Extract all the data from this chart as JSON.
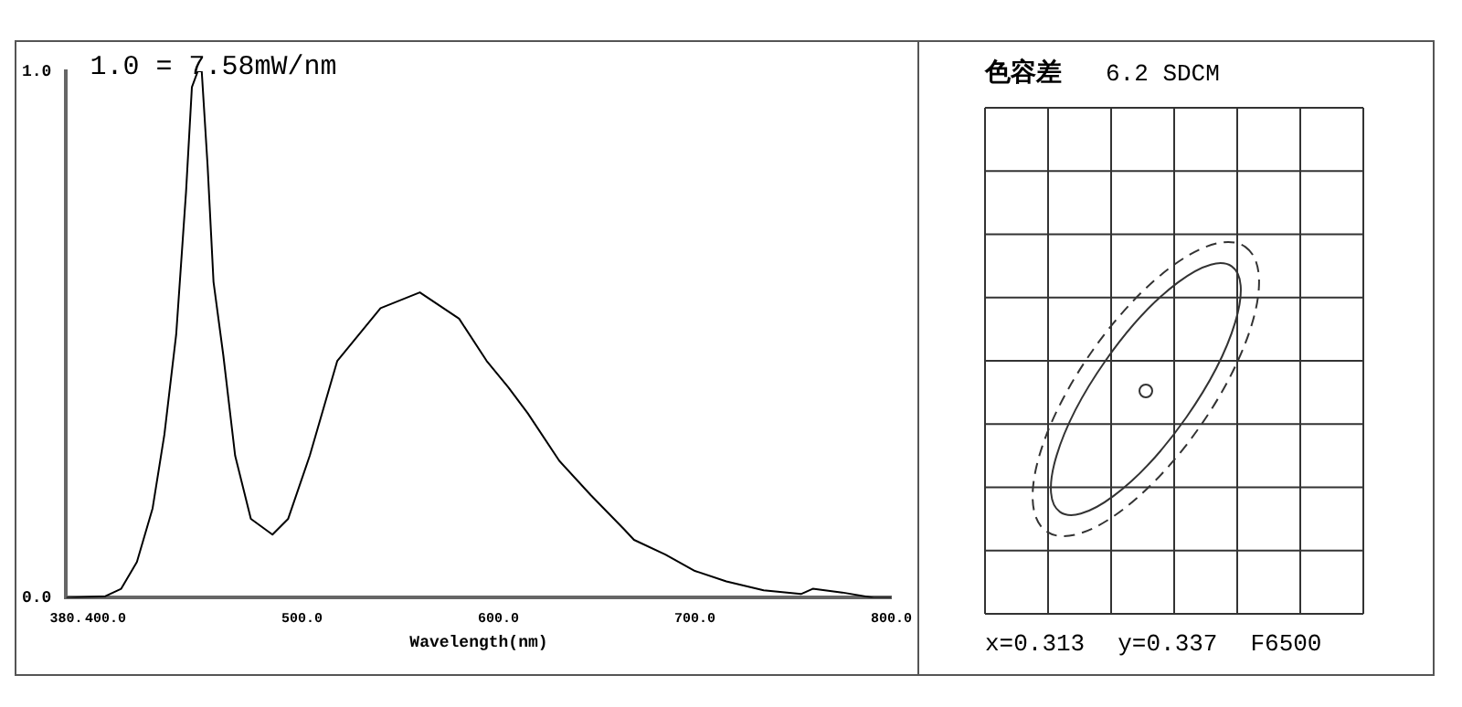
{
  "chart_data": [
    {
      "type": "line",
      "xlabel": "Wavelength(nm)",
      "annotations": [
        "1.0 = 7.58mW/nm"
      ],
      "xlim": [
        380,
        800
      ],
      "xticks": [
        {
          "value": 380,
          "label": "380."
        },
        {
          "value": 400,
          "label": "400.0"
        },
        {
          "value": 500,
          "label": "500.0"
        },
        {
          "value": 600,
          "label": "600.0"
        },
        {
          "value": 700,
          "label": "700.0"
        },
        {
          "value": 800,
          "label": "800.0"
        }
      ],
      "ylim": [
        0,
        1
      ],
      "yticks": [
        {
          "value": 0,
          "label": "0.0"
        },
        {
          "value": 1,
          "label": "1.0"
        }
      ],
      "grid": false,
      "legend": false,
      "marker": "none",
      "line_style": "solid",
      "series": [
        {
          "color": "#000000",
          "x": [
            380,
            400,
            408,
            416,
            424,
            430,
            436,
            441,
            444,
            447,
            449,
            452,
            455,
            460,
            466,
            474,
            485,
            493,
            504,
            518,
            540,
            560,
            580,
            594,
            605,
            615,
            631,
            647,
            664,
            669,
            685,
            700,
            716,
            735,
            754,
            760,
            775,
            791,
            800
          ],
          "values": [
            0,
            0.003,
            0.017,
            0.068,
            0.17,
            0.31,
            0.5,
            0.77,
            0.97,
            1.0,
            1.0,
            0.82,
            0.6,
            0.46,
            0.27,
            0.15,
            0.12,
            0.15,
            0.27,
            0.45,
            0.55,
            0.58,
            0.53,
            0.45,
            0.4,
            0.35,
            0.26,
            0.195,
            0.13,
            0.11,
            0.082,
            0.051,
            0.031,
            0.014,
            0.007,
            0.017,
            0.01,
            0,
            0
          ]
        }
      ]
    },
    {
      "type": "other",
      "title": "色容差",
      "annotations": [
        "6.2 SDCM",
        "x=0.313",
        "y=0.337",
        "F6500"
      ]
    }
  ]
}
